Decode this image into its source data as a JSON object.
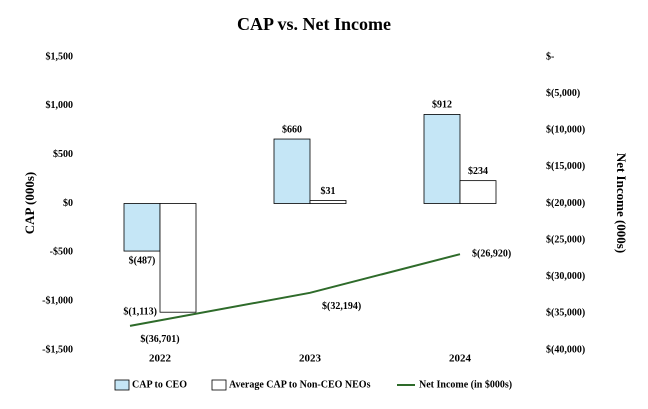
{
  "chart_data": {
    "type": "bar",
    "title": "CAP vs. Net Income",
    "y_label": "CAP (000s)",
    "y2_label": "Net Income (000s)",
    "categories": [
      "2022",
      "2023",
      "2024"
    ],
    "series": [
      {
        "name": "CAP to CEO",
        "color": "#c5e6f6",
        "values": [
          -487,
          660,
          912
        ],
        "value_labels": [
          "$(487)",
          "$660",
          "$912"
        ]
      },
      {
        "name": "Average CAP to Non-CEO NEOs",
        "color": "#ffffff",
        "values": [
          -1113,
          31,
          234
        ],
        "value_labels": [
          "$(1,113)",
          "$31",
          "$234"
        ]
      },
      {
        "name": "Net Income (in $000s)",
        "type": "line",
        "axis": "y2",
        "color": "#2e6b2a",
        "values": [
          -36701,
          -32194,
          -26920
        ],
        "value_labels": [
          "$(36,701)",
          "$(32,194)",
          "$(26,920)"
        ]
      }
    ],
    "ylim": [
      -1500,
      1500
    ],
    "yticks": [
      {
        "value": -1500,
        "label": "-$1,500"
      },
      {
        "value": -1000,
        "label": "-$1,000"
      },
      {
        "value": -500,
        "label": "-$500"
      },
      {
        "value": 0,
        "label": "$0"
      },
      {
        "value": 500,
        "label": "$500"
      },
      {
        "value": 1000,
        "label": "$1,000"
      },
      {
        "value": 1500,
        "label": "$1,500"
      }
    ],
    "y2lim": [
      -40000,
      0
    ],
    "y2ticks": [
      {
        "value": -40000,
        "label": "$(40,000)"
      },
      {
        "value": -35000,
        "label": "$(35,000)"
      },
      {
        "value": -30000,
        "label": "$(30,000)"
      },
      {
        "value": -25000,
        "label": "$(25,000)"
      },
      {
        "value": -20000,
        "label": "$(20,000)"
      },
      {
        "value": -15000,
        "label": "$(15,000)"
      },
      {
        "value": -10000,
        "label": "$(10,000)"
      },
      {
        "value": -5000,
        "label": "$(5,000)"
      },
      {
        "value": 0,
        "label": "$-"
      }
    ],
    "grid": false,
    "legend": "bottom"
  }
}
